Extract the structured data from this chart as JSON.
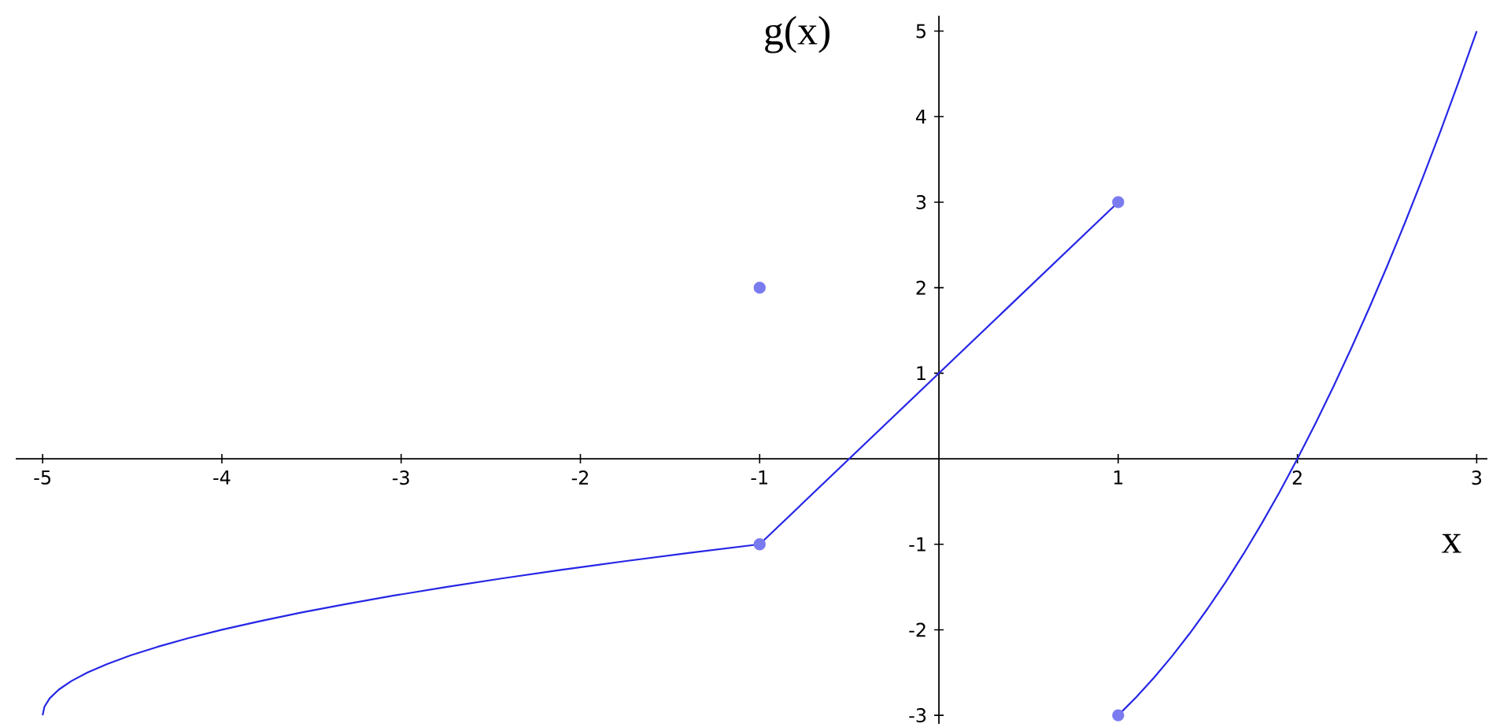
{
  "chart_data": {
    "type": "line",
    "xlabel": "x",
    "ylabel": "g(x)",
    "xlim": [
      -5.15,
      3.06
    ],
    "ylim": [
      -3.1,
      5.18
    ],
    "xticks": [
      -5,
      -4,
      -3,
      -2,
      -1,
      1,
      2,
      3
    ],
    "yticks": [
      -3,
      -2,
      -1,
      1,
      2,
      3,
      4,
      5
    ],
    "series": [
      {
        "color": "#2626e6",
        "x": [
          -5,
          -4.99,
          -4.96,
          -4.91,
          -4.84,
          -4.75,
          -4.64,
          -4.51,
          -4.36,
          -4.19,
          -4,
          -3.79,
          -3.56,
          -3.31,
          -3.04,
          -2.75,
          -2.44,
          -2.11,
          -1.76,
          -1.39,
          -1
        ],
        "values": [
          -3,
          -2.9,
          -2.8,
          -2.7,
          -2.6,
          -2.5,
          -2.4,
          -2.3,
          -2.2,
          -2.1,
          -2,
          -1.9,
          -1.8,
          -1.7,
          -1.6,
          -1.5,
          -1.4,
          -1.3,
          -1.2,
          -1.1,
          -1
        ]
      },
      {
        "color": "#2626e6",
        "x": [
          -1,
          1
        ],
        "values": [
          -1,
          3
        ]
      },
      {
        "color": "#2626e6",
        "x": [
          1,
          1.1,
          1.2,
          1.3,
          1.4,
          1.5,
          1.6,
          1.7,
          1.8,
          1.9,
          2,
          2.1,
          2.2,
          2.3,
          2.4,
          2.5,
          2.6,
          2.7,
          2.8,
          2.9,
          3
        ],
        "values": [
          -3,
          -2.79,
          -2.56,
          -2.31,
          -2.04,
          -1.75,
          -1.44,
          -1.11,
          -0.76,
          -0.39,
          0,
          0.41,
          0.84,
          1.29,
          1.76,
          2.25,
          2.76,
          3.29,
          3.84,
          4.41,
          5
        ]
      },
      {
        "type": "scatter",
        "marker": "circle",
        "color": "#7b7bf0",
        "x": [
          -1,
          1
        ],
        "values": [
          2,
          3
        ]
      },
      {
        "type": "scatter",
        "marker": "circle",
        "color": "#7b7bf0",
        "x": [
          -1,
          1
        ],
        "values": [
          -1,
          -3
        ]
      }
    ]
  }
}
